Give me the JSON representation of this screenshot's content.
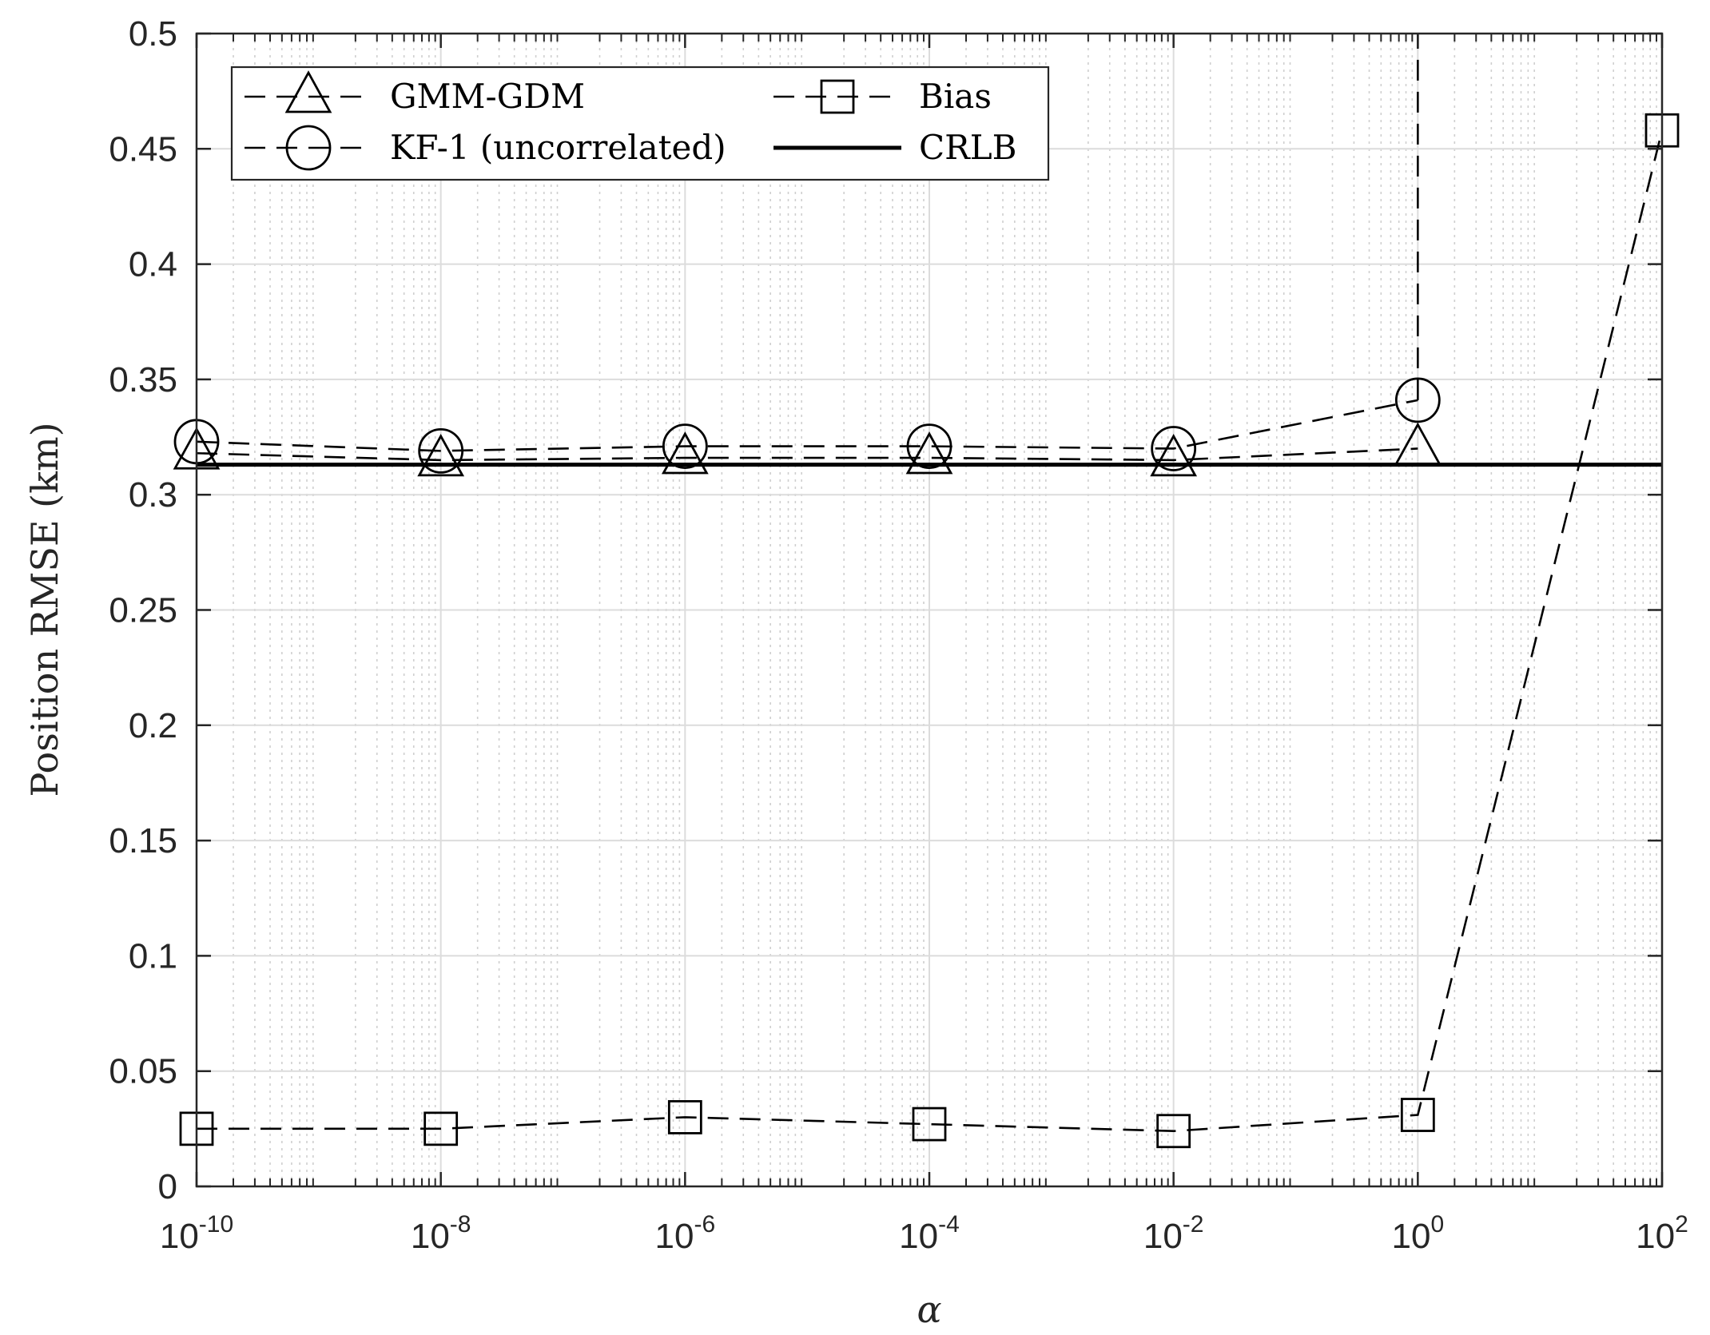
{
  "chart_data": {
    "type": "line",
    "xscale": "log",
    "xlim": [
      1e-10,
      100
    ],
    "ylim": [
      0,
      0.5
    ],
    "xlabel": "α",
    "ylabel": "Position RMSE (km)",
    "grid": true,
    "minor_grid": true,
    "legend_position": "top-left",
    "x_ticks": [
      {
        "base": "10",
        "exp": "-10",
        "value": 1e-10
      },
      {
        "base": "10",
        "exp": "-8",
        "value": 1e-08
      },
      {
        "base": "10",
        "exp": "-6",
        "value": 1e-06
      },
      {
        "base": "10",
        "exp": "-4",
        "value": 0.0001
      },
      {
        "base": "10",
        "exp": "-2",
        "value": 0.01
      },
      {
        "base": "10",
        "exp": "0",
        "value": 1
      },
      {
        "base": "10",
        "exp": "2",
        "value": 100
      }
    ],
    "y_ticks": [
      "0",
      "0.05",
      "0.1",
      "0.15",
      "0.2",
      "0.25",
      "0.3",
      "0.35",
      "0.4",
      "0.45",
      "0.5"
    ],
    "x": [
      1e-10,
      1e-08,
      1e-06,
      0.0001,
      0.01,
      1
    ],
    "series": [
      {
        "name": "GMM-GDM",
        "marker": "triangle",
        "dash": "dashed",
        "values": [
          0.318,
          0.315,
          0.316,
          0.316,
          0.315,
          0.32
        ]
      },
      {
        "name": "KF-1 (uncorrelated)",
        "marker": "circle",
        "dash": "dashed",
        "values": [
          0.323,
          0.319,
          0.321,
          0.321,
          0.32,
          0.341
        ],
        "vertical_line_at_x": 1,
        "vertical_line_to_y": 0.5
      },
      {
        "name": "Bias",
        "marker": "square",
        "dash": "dashed",
        "x": [
          1e-10,
          1e-08,
          1e-06,
          0.0001,
          0.01,
          1,
          100
        ],
        "values": [
          0.025,
          0.025,
          0.03,
          0.027,
          0.024,
          0.031,
          0.458
        ]
      },
      {
        "name": "CRLB",
        "marker": "none",
        "dash": "solid",
        "values": [
          0.313,
          0.313,
          0.313,
          0.313,
          0.313,
          0.313,
          0.313
        ],
        "x": [
          1e-10,
          1e-08,
          1e-06,
          0.0001,
          0.01,
          1,
          100
        ]
      }
    ]
  }
}
